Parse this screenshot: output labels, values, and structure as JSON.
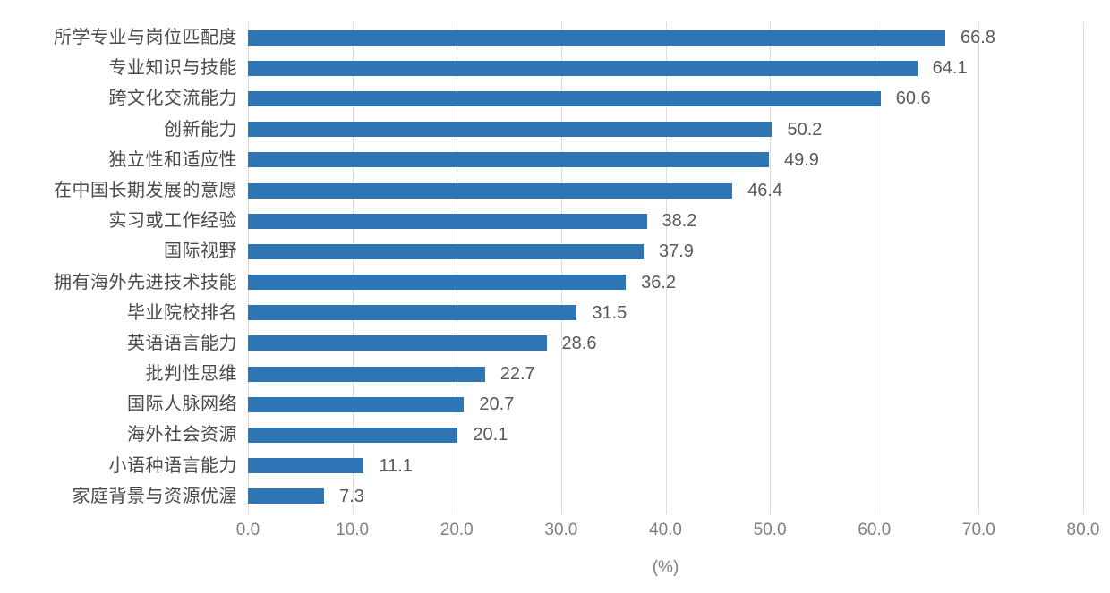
{
  "chart_data": {
    "type": "bar",
    "orientation": "horizontal",
    "title": "",
    "xlabel": "(%)",
    "xlim": [
      0,
      80
    ],
    "xticks": [
      0,
      10,
      20,
      30,
      40,
      50,
      60,
      70,
      80
    ],
    "xtick_labels": [
      "0.0",
      "10.0",
      "20.0",
      "30.0",
      "40.0",
      "50.0",
      "60.0",
      "70.0",
      "80.0"
    ],
    "grid": "vertical",
    "legend": "none",
    "bar_color": "#2E75B6",
    "gridline_color": "#DCDCDC",
    "categories": [
      "所学专业与岗位匹配度",
      "专业知识与技能",
      "跨文化交流能力",
      "创新能力",
      "独立性和适应性",
      "在中国长期发展的意愿",
      "实习或工作经验",
      "国际视野",
      "拥有海外先进技术技能",
      "毕业院校排名",
      "英语语言能力",
      "批判性思维",
      "国际人脉网络",
      "海外社会资源",
      "小语种语言能力",
      "家庭背景与资源优渥"
    ],
    "values": [
      66.8,
      64.1,
      60.6,
      50.2,
      49.9,
      46.4,
      38.2,
      37.9,
      36.2,
      31.5,
      28.6,
      22.7,
      20.7,
      20.1,
      11.1,
      7.3
    ],
    "value_labels": [
      "66.8",
      "64.1",
      "60.6",
      "50.2",
      "49.9",
      "46.4",
      "38.2",
      "37.9",
      "36.2",
      "31.5",
      "28.6",
      "22.7",
      "20.7",
      "20.1",
      "11.1",
      "7.3"
    ]
  }
}
